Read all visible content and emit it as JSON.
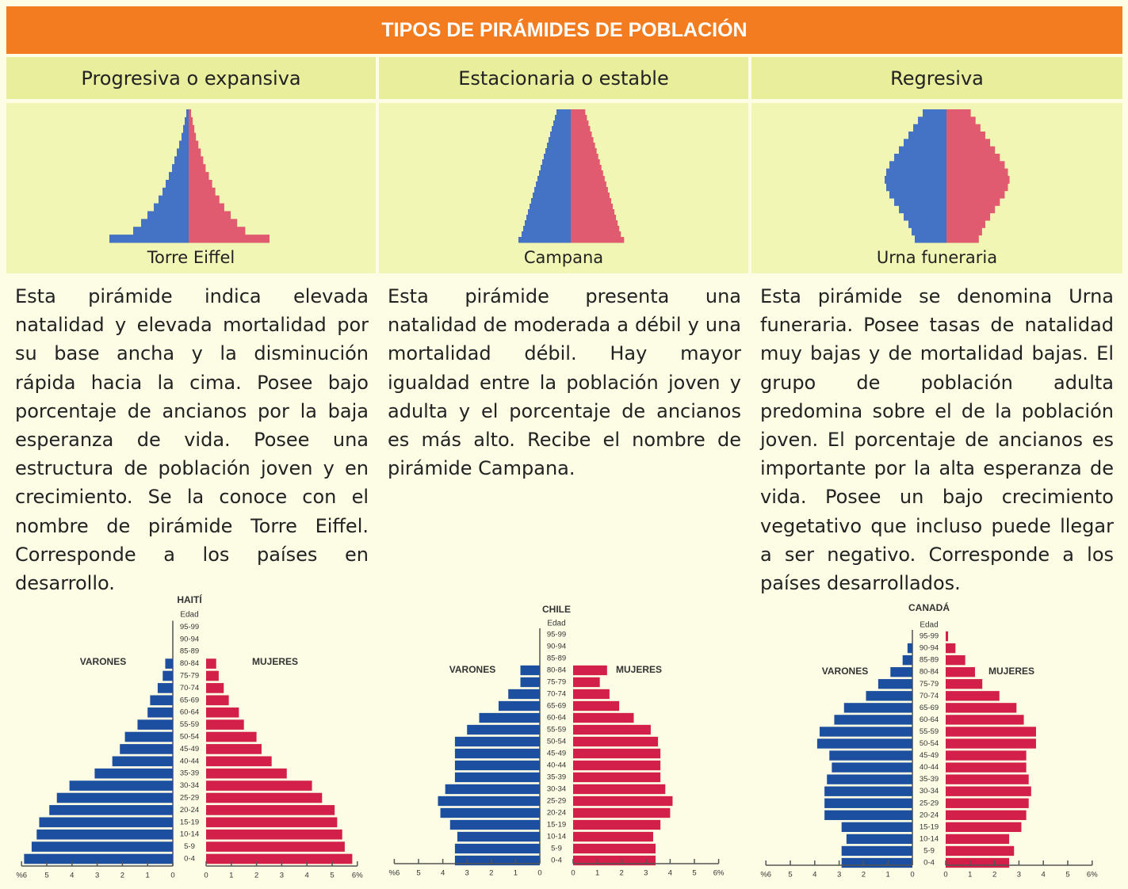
{
  "header": {
    "title": "TIPOS DE PIRÁMIDES DE POBLACIÓN"
  },
  "columns": [
    {
      "title": "Progresiva o expansiva",
      "shape_label": "Torre Eiffel",
      "text": "Esta pirámide indica elevada natalidad y elevada mortalidad por su base ancha y la disminución rápida hacia la cima. Posee bajo porcentaje de ancianos por la baja esperanza de vida. Posee una estructura de población joven y en crecimiento. Se la conoce con el nombre de pirámide Torre Eiffel. Corresponde a los países en desarrollo."
    },
    {
      "title": "Estacionaria o estable",
      "shape_label": "Campana",
      "text": "Esta pirámide presenta una natalidad de moderada a débil y una mortalidad débil. Hay mayor igualdad entre la población joven y adulta y el porcentaje de ancianos es más alto. Recibe el nombre de pirámide Campana."
    },
    {
      "title": "Regresiva",
      "shape_label": "Urna funeraria",
      "text": "Esta pirámide se denomina Urna funeraria. Posee tasas de natalidad muy bajas y de mortalidad bajas. El grupo de población adulta predomina sobre el de la población joven. El porcentaje de ancianos es importante por la alta esperanza de vida. Posee un bajo crecimiento vegetativo que incluso puede llegar a ser negativo. Corresponde a los países desarrollados."
    }
  ],
  "chart_data": [
    {
      "type": "pyramid",
      "title": "HAITÍ",
      "y_label": "Edad",
      "categories": [
        "0-4",
        "5-9",
        "10-14",
        "15-19",
        "20-24",
        "25-29",
        "30-34",
        "35-39",
        "40-44",
        "45-49",
        "50-54",
        "55-59",
        "60-64",
        "65-69",
        "70-74",
        "75-79",
        "80-84",
        "85-89",
        "90-94",
        "95-99"
      ],
      "series": [
        {
          "name": "VARONES",
          "color": "#1c4f9f",
          "values": [
            5.9,
            5.6,
            5.4,
            5.3,
            4.9,
            4.6,
            4.1,
            3.1,
            2.4,
            2.1,
            1.9,
            1.4,
            1.0,
            0.9,
            0.6,
            0.4,
            0.3,
            0,
            0,
            0
          ]
        },
        {
          "name": "MUJERES",
          "color": "#d2204b",
          "values": [
            5.8,
            5.5,
            5.4,
            5.2,
            5.1,
            4.6,
            4.2,
            3.2,
            2.6,
            2.2,
            2.0,
            1.5,
            1.3,
            0.9,
            0.7,
            0.5,
            0.4,
            0,
            0,
            0
          ]
        }
      ],
      "xlim": [
        0,
        6
      ],
      "xticks": [
        {
          "value": 6,
          "label": "%6"
        },
        5,
        4,
        3,
        2,
        1,
        0
      ],
      "x2ticks": [
        0,
        1,
        2,
        3,
        4,
        5,
        {
          "value": 6,
          "label": "6%"
        }
      ]
    },
    {
      "type": "pyramid",
      "title": "CHILE",
      "y_label": "Edad",
      "categories": [
        "0-4",
        "5-9",
        "10-14",
        "15-19",
        "20-24",
        "25-29",
        "30-34",
        "35-39",
        "40-44",
        "45-49",
        "50-54",
        "55-59",
        "60-64",
        "65-69",
        "70-74",
        "75-79",
        "80-84",
        "85-89",
        "90-94",
        "95-99"
      ],
      "series": [
        {
          "name": "VARONES",
          "color": "#1c4f9f",
          "values": [
            3.5,
            3.5,
            3.4,
            3.7,
            4.1,
            4.2,
            3.9,
            3.5,
            3.5,
            3.5,
            3.5,
            3.0,
            2.5,
            1.7,
            1.3,
            0.8,
            0.8,
            0,
            0,
            0
          ]
        },
        {
          "name": "MUJERES",
          "color": "#d2204b",
          "values": [
            3.4,
            3.4,
            3.3,
            3.6,
            4.0,
            4.1,
            3.8,
            3.6,
            3.6,
            3.6,
            3.5,
            3.2,
            2.5,
            1.9,
            1.5,
            1.1,
            1.4,
            0,
            0,
            0
          ]
        }
      ],
      "xlim": [
        0,
        6
      ],
      "xticks": [
        {
          "value": 6,
          "label": "%6"
        },
        5,
        4,
        3,
        2,
        1,
        0
      ],
      "x2ticks": [
        0,
        1,
        2,
        3,
        4,
        5,
        {
          "value": 6,
          "label": "6%"
        }
      ]
    },
    {
      "type": "pyramid",
      "title": "CANADÁ",
      "y_label": "Edad",
      "categories": [
        "0-4",
        "5-9",
        "10-14",
        "15-19",
        "20-24",
        "25-29",
        "30-34",
        "35-39",
        "40-44",
        "45-49",
        "50-54",
        "55-59",
        "60-64",
        "65-69",
        "70-74",
        "75-79",
        "80-84",
        "85-89",
        "90-94",
        "95-99"
      ],
      "series": [
        {
          "name": "VARONES",
          "color": "#1c4f9f",
          "values": [
            2.9,
            2.9,
            2.7,
            2.9,
            3.6,
            3.6,
            3.6,
            3.5,
            3.3,
            3.4,
            3.9,
            3.8,
            3.2,
            2.8,
            1.9,
            1.4,
            0.9,
            0.4,
            0.2,
            0
          ]
        },
        {
          "name": "MUJERES",
          "color": "#d2204b",
          "values": [
            2.6,
            2.8,
            2.6,
            3.1,
            3.3,
            3.4,
            3.5,
            3.4,
            3.3,
            3.3,
            3.7,
            3.7,
            3.2,
            2.9,
            2.2,
            1.5,
            1.2,
            0.8,
            0.4,
            0.1
          ]
        }
      ],
      "xlim": [
        0,
        6
      ],
      "xticks": [
        {
          "value": 6,
          "label": "%6"
        },
        5,
        4,
        3,
        2,
        1,
        0
      ],
      "x2ticks": [
        0,
        1,
        2,
        3,
        4,
        5,
        {
          "value": 6,
          "label": "6%"
        }
      ]
    }
  ]
}
